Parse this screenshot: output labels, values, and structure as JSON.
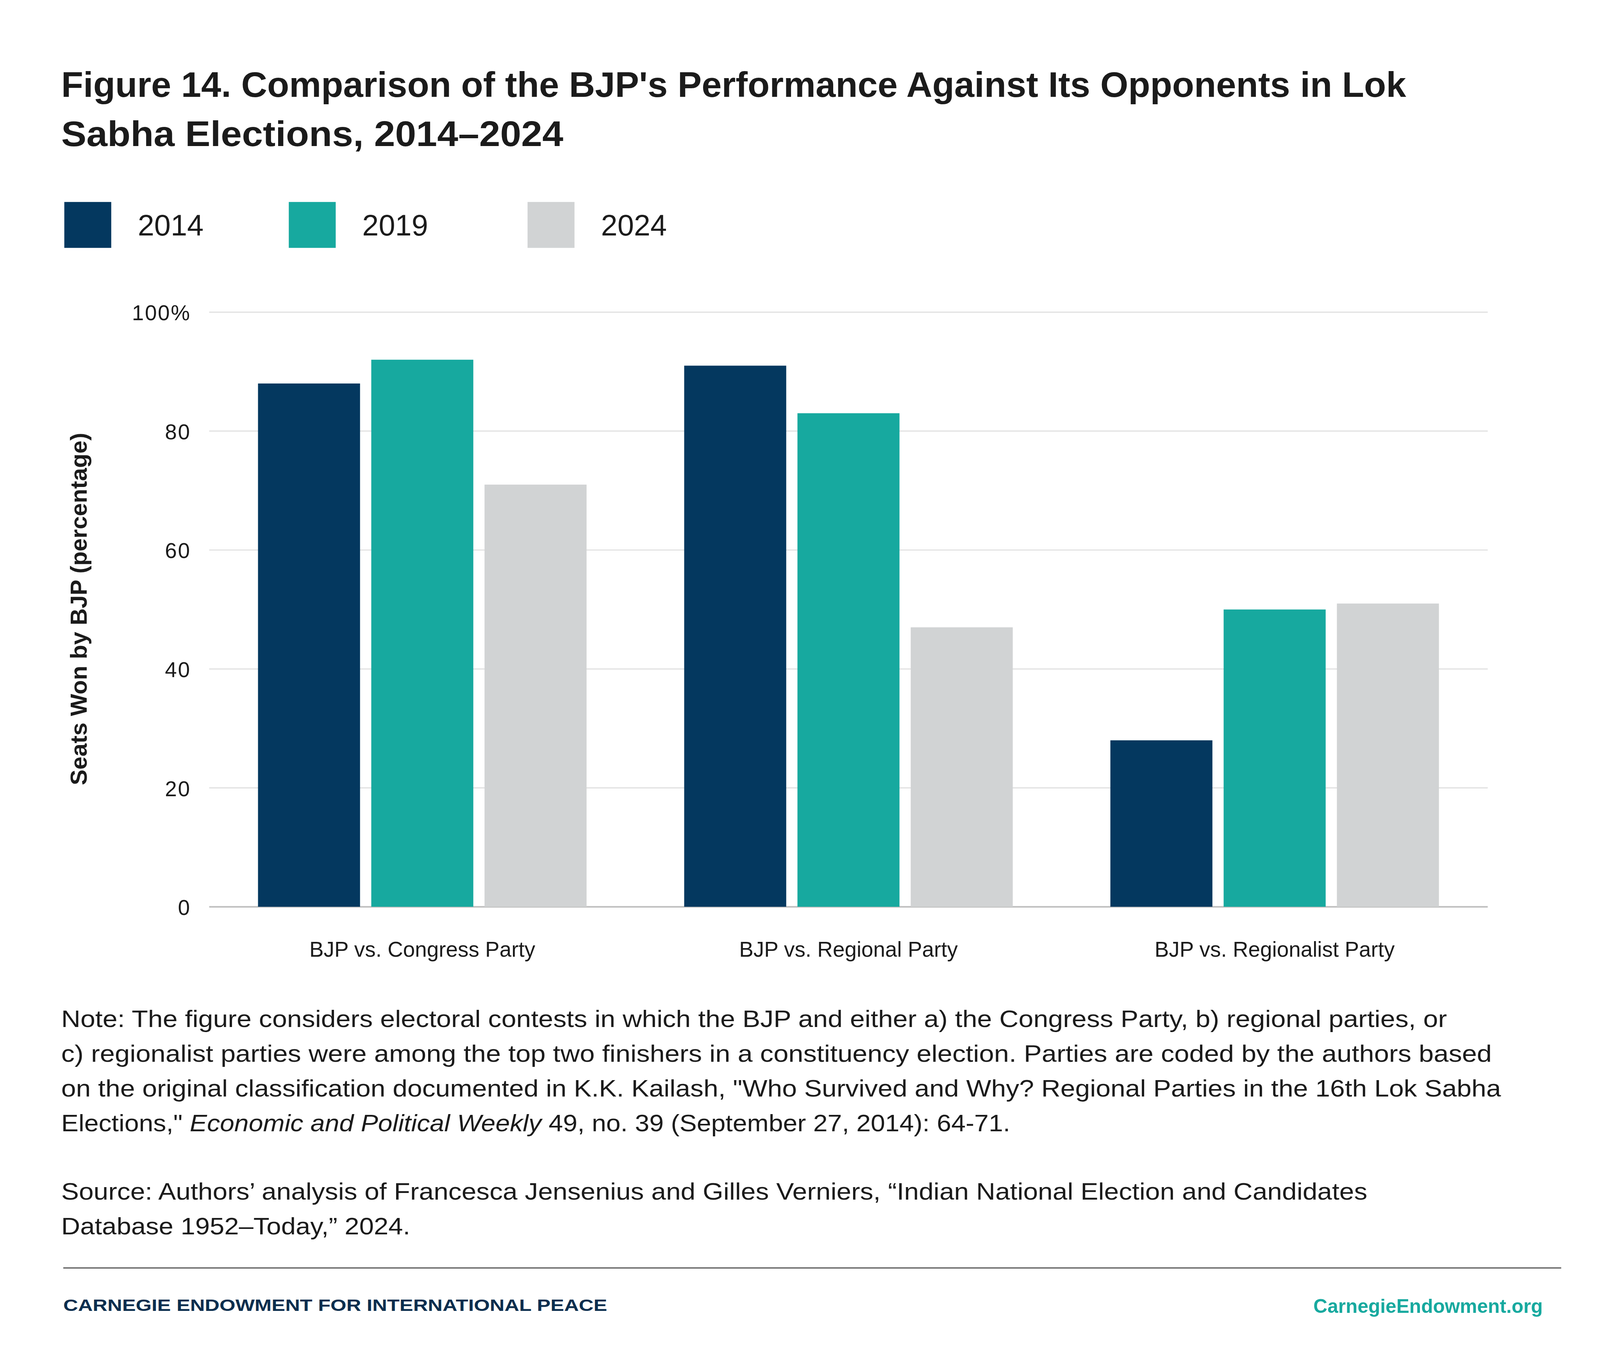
{
  "chart_data": {
    "type": "bar",
    "title": [
      "Figure 14. Comparison of the BJP's Performance Against Its Opponents in Lok",
      "Sabha Elections, 2014–2024"
    ],
    "y_label": "Seats Won by BJP (percentage)",
    "categories": [
      "BJP vs. Congress Party",
      "BJP vs. Regional Party",
      "BJP vs. Regionalist Party"
    ],
    "series": [
      {
        "name": "2014",
        "color": "#04385f",
        "values": [
          88,
          91,
          28
        ]
      },
      {
        "name": "2019",
        "color": "#17a99f",
        "values": [
          92,
          83,
          50
        ]
      },
      {
        "name": "2024",
        "color": "#d1d3d4",
        "values": [
          71,
          47,
          51
        ]
      }
    ],
    "ylim": [
      0,
      100
    ],
    "yticks": [
      0,
      20,
      40,
      60,
      80,
      {
        "value": 100,
        "label": "100%"
      }
    ],
    "grid": true,
    "legend": "top",
    "note": [
      [
        "Note: The figure considers electoral contests in which the BJP and either a) the Congress Party, b) regional parties, or"
      ],
      [
        "c) regionalist parties were among the top two finishers in a constituency election. Parties are coded by the authors based"
      ],
      [
        "on the original classification documented in K.K. Kailash, \"Who Survived and Why? Regional Parties in the 16th Lok Sabha"
      ],
      [
        "Elections,\" ",
        "Economic and Political Weekly",
        " 49, no. 39 (September 27, 2014): 64-71."
      ]
    ],
    "source": [
      [
        "Source: Authors’ analysis of Francesca Jensenius and Gilles Verniers, “Indian National Election and Candidates"
      ],
      [
        "Database 1952–Today,” 2024."
      ]
    ],
    "footer_left": "CARNEGIE ENDOWMENT FOR INTERNATIONAL PEACE",
    "footer_right": "CarnegieEndowment.org"
  }
}
